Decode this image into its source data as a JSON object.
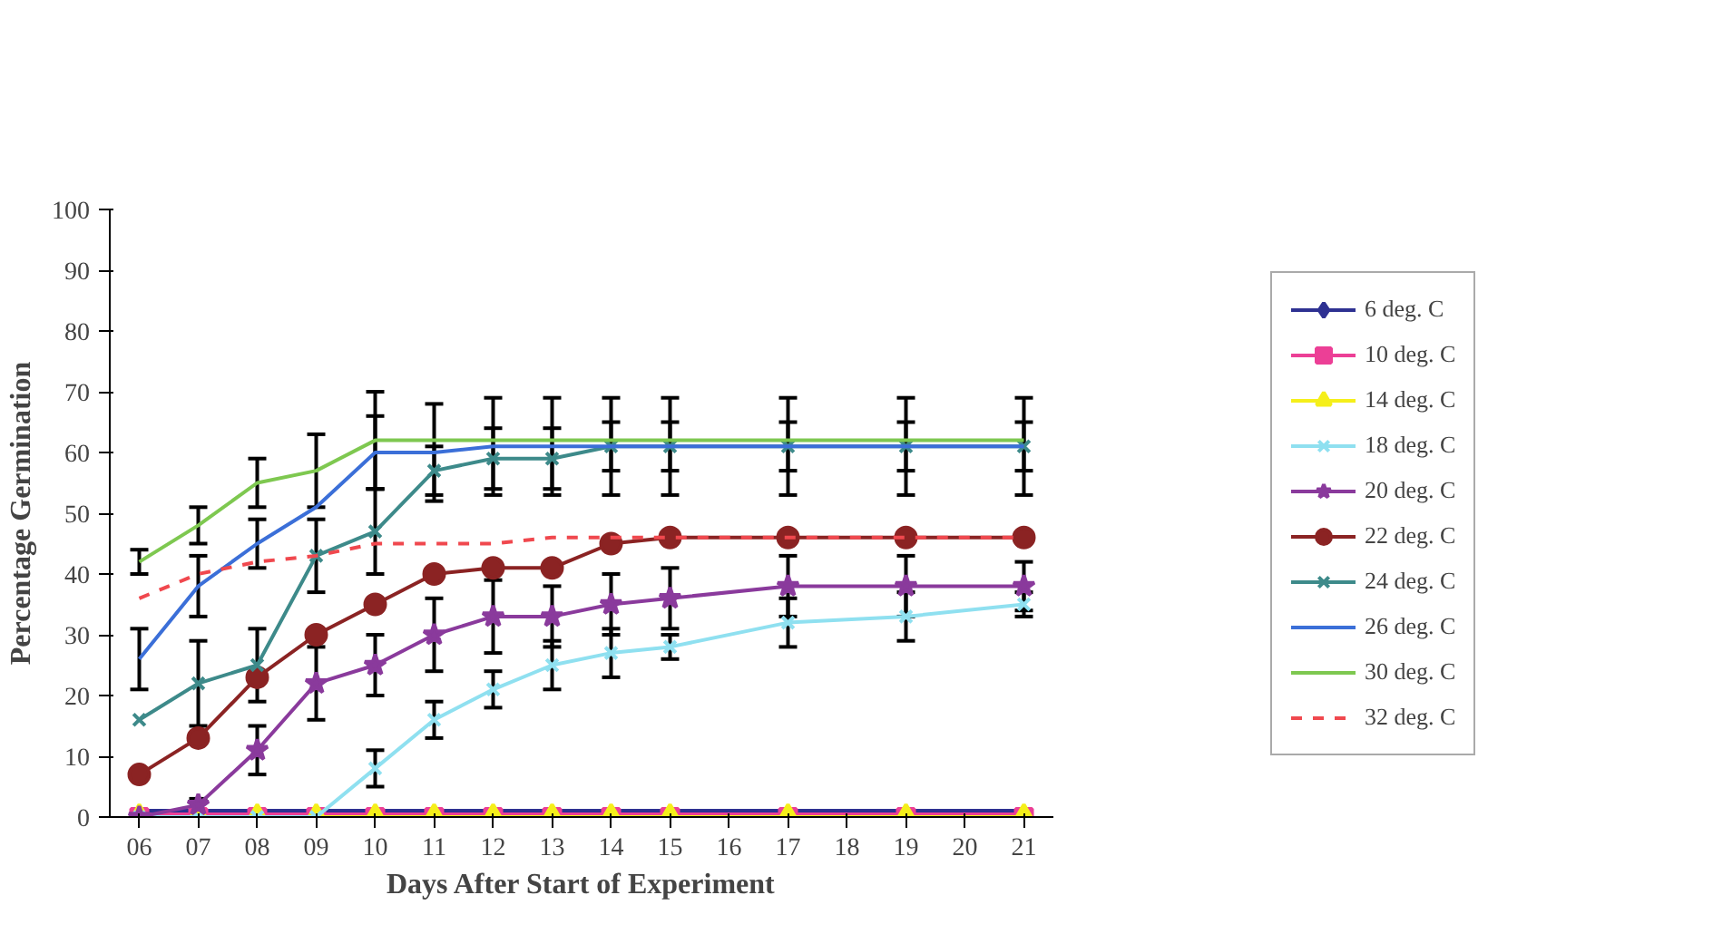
{
  "chart_data": {
    "type": "line",
    "xlabel": "Days After Start of Experiment",
    "ylabel": "Percentage Germination",
    "x": [
      6,
      7,
      8,
      9,
      10,
      11,
      12,
      13,
      14,
      15,
      17,
      19,
      21
    ],
    "xlim": [
      5.5,
      21.5
    ],
    "xticks": [
      {
        "value": 6,
        "label": "06"
      },
      {
        "value": 7,
        "label": "07"
      },
      {
        "value": 8,
        "label": "08"
      },
      {
        "value": 9,
        "label": "09"
      },
      10,
      11,
      12,
      13,
      14,
      15,
      16,
      17,
      18,
      19,
      20,
      21
    ],
    "ylim": [
      0,
      100
    ],
    "yticks": [
      0,
      10,
      20,
      30,
      40,
      50,
      60,
      70,
      80,
      90,
      100
    ],
    "grid": false,
    "legend": "right",
    "series": [
      {
        "name": "6 deg. C",
        "color": "#2e3192",
        "marker": "diamond",
        "values": [
          0,
          0,
          0,
          0,
          0,
          0,
          0,
          0,
          0,
          0,
          0,
          0,
          0
        ]
      },
      {
        "name": "10 deg. C",
        "color": "#ec3f96",
        "marker": "square",
        "values": [
          0,
          0,
          0,
          0,
          0,
          0,
          0,
          0,
          0,
          0,
          0,
          0,
          0
        ]
      },
      {
        "name": "14 deg. C",
        "color": "#f5ef1a",
        "marker": "triangle",
        "values": [
          0,
          0,
          0,
          0,
          0,
          0,
          0,
          0,
          0,
          0,
          0,
          0,
          0
        ]
      },
      {
        "name": "18 deg. C",
        "color": "#8fe0f0",
        "marker": "cross",
        "values": [
          0,
          0,
          0,
          0,
          8,
          16,
          21,
          25,
          27,
          28,
          32,
          33,
          35
        ],
        "errors": [
          null,
          null,
          null,
          null,
          3,
          3,
          3,
          4,
          4,
          2,
          4,
          4,
          2
        ]
      },
      {
        "name": "20 deg. C",
        "color": "#8a3a9c",
        "marker": "star",
        "values": [
          0,
          2,
          11,
          22,
          25,
          30,
          33,
          33,
          35,
          36,
          38,
          38,
          38
        ],
        "errors": [
          null,
          1,
          4,
          6,
          5,
          6,
          6,
          5,
          5,
          5,
          5,
          5,
          4
        ]
      },
      {
        "name": "22 deg. C",
        "color": "#8b2323",
        "marker": "circle",
        "values": [
          7,
          13,
          23,
          30,
          35,
          40,
          41,
          41,
          45,
          46,
          46,
          46,
          46
        ],
        "errors": [
          null,
          null,
          null,
          null,
          null,
          null,
          null,
          null,
          null,
          null,
          null,
          null,
          null
        ]
      },
      {
        "name": "24 deg. C",
        "color": "#3d8a8a",
        "marker": "cross",
        "values": [
          16,
          22,
          25,
          43,
          47,
          57,
          59,
          59,
          61,
          61,
          61,
          61,
          61
        ],
        "errors": [
          null,
          7,
          6,
          6,
          7,
          4,
          5,
          5,
          4,
          4,
          4,
          4,
          4
        ]
      },
      {
        "name": "26 deg. C",
        "color": "#3b6fd8",
        "marker": "none",
        "values": [
          26,
          38,
          45,
          51,
          60,
          60,
          61,
          61,
          61,
          61,
          61,
          61,
          61
        ],
        "errors": [
          5,
          5,
          4,
          null,
          6,
          8,
          8,
          8,
          8,
          8,
          8,
          8,
          8
        ]
      },
      {
        "name": "30 deg. C",
        "color": "#7ec850",
        "marker": "none",
        "values": [
          42,
          48,
          55,
          57,
          62,
          62,
          62,
          62,
          62,
          62,
          62,
          62,
          62
        ],
        "errors": [
          2,
          3,
          4,
          6,
          8,
          null,
          null,
          null,
          null,
          null,
          null,
          null,
          null
        ]
      },
      {
        "name": "32 deg. C",
        "color": "#f0484e",
        "marker": "none",
        "line_style": "dashed",
        "values": [
          36,
          40,
          42,
          43,
          45,
          45,
          45,
          46,
          46,
          46,
          46,
          46,
          46
        ],
        "errors": [
          null,
          null,
          null,
          null,
          null,
          null,
          null,
          null,
          null,
          null,
          null,
          null,
          null
        ]
      }
    ]
  }
}
